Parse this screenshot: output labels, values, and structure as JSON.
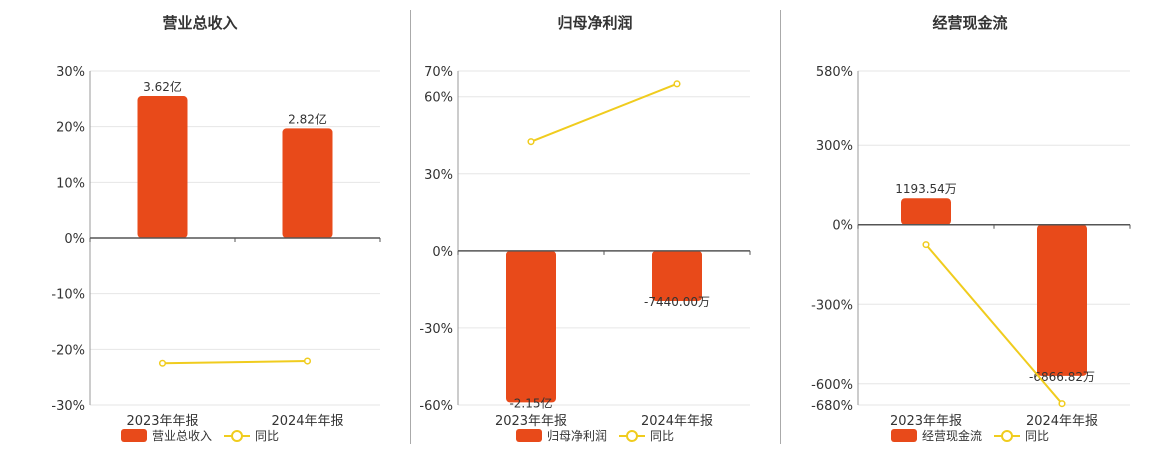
{
  "colors": {
    "bar": "#E84A1A",
    "line": "#F0CC1E",
    "grid": "#E6E6E6",
    "axis": "#555555",
    "text": "#333333"
  },
  "legend": {
    "line_label": "同比"
  },
  "chart_data": [
    {
      "type": "bar",
      "title": "营业总收入",
      "categories": [
        "2023年年报",
        "2024年年报"
      ],
      "ylim": [
        -30,
        30
      ],
      "yticks": [
        30,
        20,
        10,
        0,
        -10,
        -20,
        -30
      ],
      "ytick_labels": [
        "30%",
        "20%",
        "10%",
        "0%",
        "-10%",
        "-20%",
        "-30%"
      ],
      "series": [
        {
          "name": "营业总收入",
          "type": "bar",
          "values": [
            25.5,
            19.7
          ],
          "data_labels": [
            "3.62亿",
            "2.82亿"
          ]
        },
        {
          "name": "同比",
          "type": "line",
          "values": [
            -22.5,
            -22.1
          ]
        }
      ],
      "legend": "bottom"
    },
    {
      "type": "bar",
      "title": "归母净利润",
      "categories": [
        "2023年年报",
        "2024年年报"
      ],
      "ylim": [
        -60,
        70
      ],
      "yticks": [
        70,
        60,
        30,
        0,
        -30,
        -60
      ],
      "ytick_labels": [
        "70%",
        "60%",
        "30%",
        "0%",
        "-30%",
        "-60%"
      ],
      "series": [
        {
          "name": "归母净利润",
          "type": "bar",
          "values": [
            -59,
            -19.5
          ],
          "data_labels": [
            "-2.15亿",
            "-7440.00万"
          ]
        },
        {
          "name": "同比",
          "type": "line",
          "values": [
            42.5,
            65
          ]
        }
      ],
      "legend": "bottom"
    },
    {
      "type": "bar",
      "title": "经营现金流",
      "categories": [
        "2023年年报",
        "2024年年报"
      ],
      "ylim": [
        -680,
        580
      ],
      "yticks": [
        580,
        300,
        0,
        -300,
        -600,
        -680
      ],
      "ytick_labels": [
        "580%",
        "300%",
        "0%",
        "-300%",
        "-600%",
        "-680%"
      ],
      "series": [
        {
          "name": "经营现金流",
          "type": "bar",
          "values": [
            100,
            -570
          ],
          "data_labels": [
            "1193.54万",
            "-6866.82万"
          ]
        },
        {
          "name": "同比",
          "type": "line",
          "values": [
            -75,
            -675
          ]
        }
      ],
      "legend": "bottom"
    }
  ]
}
